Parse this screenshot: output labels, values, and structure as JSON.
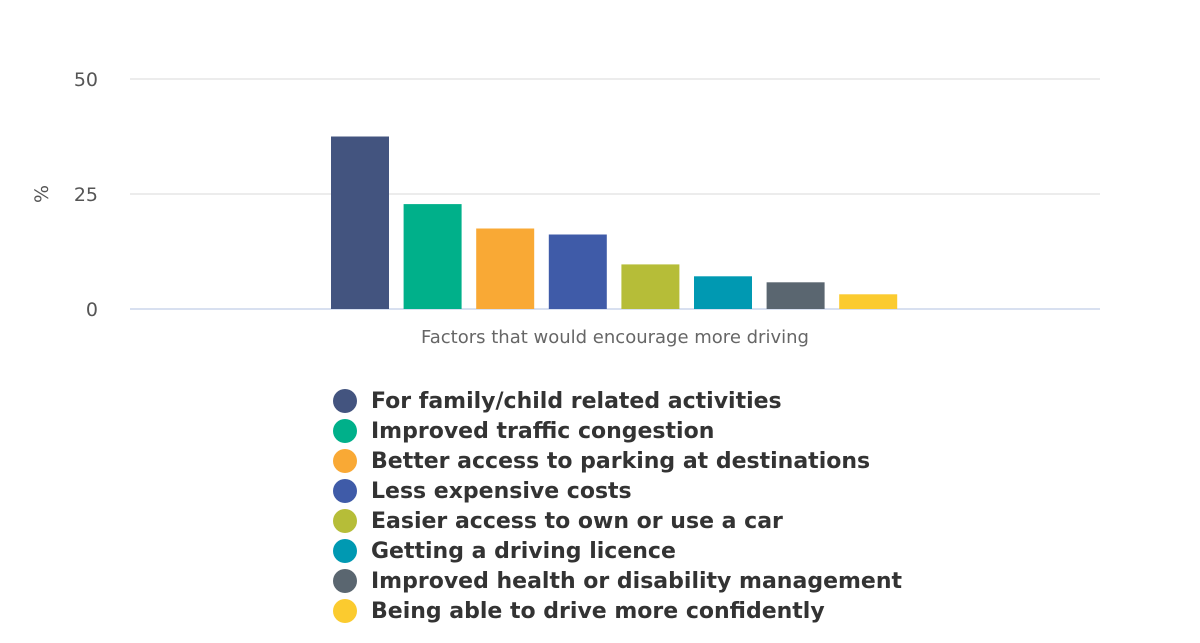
{
  "chart_data": {
    "type": "bar",
    "title": "",
    "xlabel": "Factors that would encourage more driving",
    "ylabel": "%",
    "ylim": [
      0,
      50
    ],
    "yticks": [
      0,
      25,
      50
    ],
    "grid": true,
    "legend_position": "bottom",
    "categories": [
      "Factors that would encourage more driving"
    ],
    "series": [
      {
        "name": "For family/child related activities",
        "values": [
          37.5
        ],
        "color": "#43547f"
      },
      {
        "name": "Improved traffic congestion",
        "values": [
          22.8
        ],
        "color": "#00b08a"
      },
      {
        "name": "Better access to parking at destinations",
        "values": [
          17.5
        ],
        "color": "#f9a935"
      },
      {
        "name": "Less expensive costs",
        "values": [
          16.2
        ],
        "color": "#3f5ba8"
      },
      {
        "name": "Easier access to own or use a car",
        "values": [
          9.7
        ],
        "color": "#b6bd38"
      },
      {
        "name": "Getting a driving licence",
        "values": [
          7.1
        ],
        "color": "#0099b2"
      },
      {
        "name": "Improved health or disability management",
        "values": [
          5.8
        ],
        "color": "#5a6670"
      },
      {
        "name": "Being able to drive more confidently",
        "values": [
          3.2
        ],
        "color": "#fbcb2f"
      }
    ]
  }
}
